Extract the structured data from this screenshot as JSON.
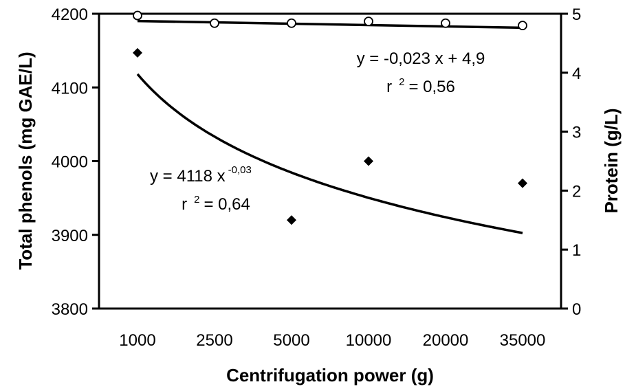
{
  "chart_data": {
    "type": "scatter",
    "title": "",
    "xlabel": "Centrifugation power (g)",
    "ylabel": "Total phenols (mg GAE/L)",
    "ylabel_right": "Protein (g/L)",
    "categories": [
      "1000",
      "2500",
      "5000",
      "10000",
      "20000",
      "35000"
    ],
    "ylim": [
      3800,
      4200
    ],
    "yticks": [
      "3800",
      "3900",
      "4000",
      "4100",
      "4200"
    ],
    "y2lim": [
      0,
      5
    ],
    "y2ticks": [
      "0",
      "1",
      "2",
      "3",
      "4",
      "5"
    ],
    "grid": false,
    "series": [
      {
        "axis": "left",
        "marker": "filled-diamond",
        "x": [
          "1000",
          "5000",
          "10000",
          "35000"
        ],
        "values": [
          4147,
          3920,
          4000,
          3970
        ],
        "trendline": {
          "kind": "power",
          "coef": 4118,
          "exp": -0.03,
          "equation_base": "y = 4118 x",
          "equation_exp": "-0,03",
          "r2_prefix": "r",
          "r2_sup": "2",
          "r2_value": "= 0,64"
        }
      },
      {
        "axis": "right",
        "marker": "open-circle",
        "x": [
          "1000",
          "2500",
          "5000",
          "10000",
          "20000",
          "35000"
        ],
        "values": [
          4.97,
          4.84,
          4.84,
          4.87,
          4.84,
          4.8
        ],
        "trendline": {
          "kind": "linear",
          "slope": -0.023,
          "intercept": 4.9,
          "equation": "y = -0,023 x + 4,9",
          "r2_prefix": "r",
          "r2_sup": "2",
          "r2_value": "= 0,56"
        }
      }
    ]
  }
}
